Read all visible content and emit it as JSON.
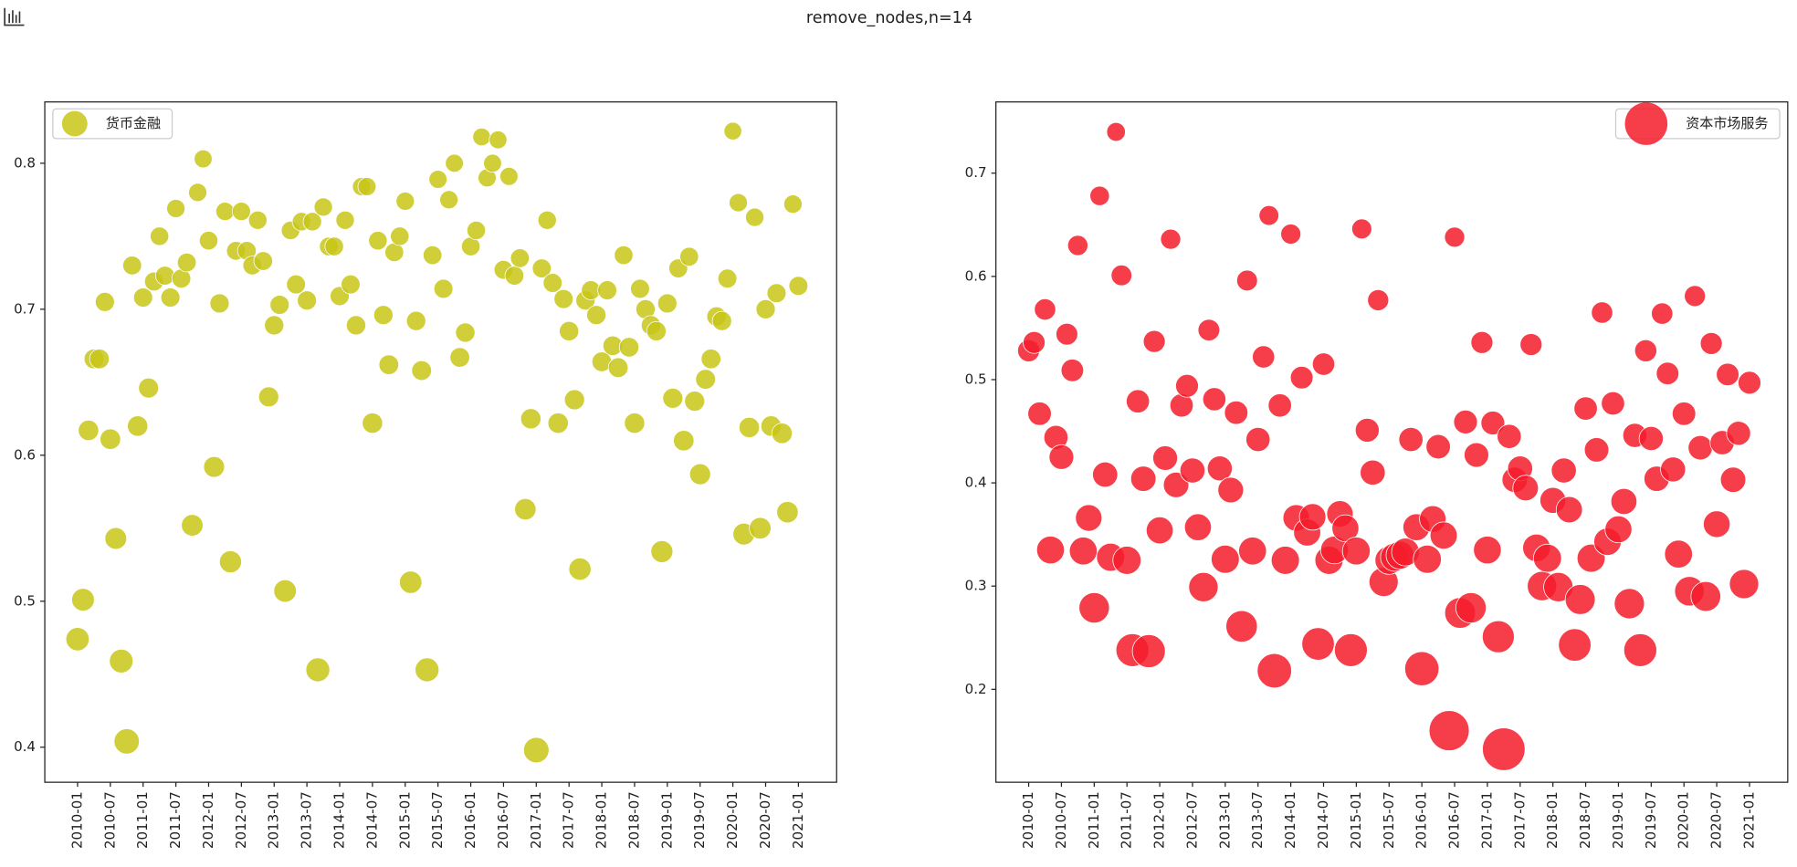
{
  "title": "remove_nodes,n=14",
  "chart_data": [
    {
      "type": "scatter",
      "x": [
        "2010-01",
        "2010-02",
        "2010-03",
        "2010-04",
        "2010-05",
        "2010-06",
        "2010-07",
        "2010-08",
        "2010-09",
        "2010-10",
        "2010-11",
        "2010-12",
        "2011-01",
        "2011-02",
        "2011-03",
        "2011-04",
        "2011-05",
        "2011-06",
        "2011-07",
        "2011-08",
        "2011-09",
        "2011-10",
        "2011-11",
        "2011-12",
        "2012-01",
        "2012-02",
        "2012-03",
        "2012-04",
        "2012-05",
        "2012-06",
        "2012-07",
        "2012-08",
        "2012-09",
        "2012-10",
        "2012-11",
        "2012-12",
        "2013-01",
        "2013-02",
        "2013-03",
        "2013-04",
        "2013-05",
        "2013-06",
        "2013-07",
        "2013-08",
        "2013-09",
        "2013-10",
        "2013-11",
        "2013-12",
        "2014-01",
        "2014-02",
        "2014-03",
        "2014-04",
        "2014-05",
        "2014-06",
        "2014-07",
        "2014-08",
        "2014-09",
        "2014-10",
        "2014-11",
        "2014-12",
        "2015-01",
        "2015-02",
        "2015-03",
        "2015-04",
        "2015-05",
        "2015-06",
        "2015-07",
        "2015-08",
        "2015-09",
        "2015-10",
        "2015-11",
        "2015-12",
        "2016-01",
        "2016-02",
        "2016-03",
        "2016-04",
        "2016-05",
        "2016-06",
        "2016-07",
        "2016-08",
        "2016-09",
        "2016-10",
        "2016-11",
        "2016-12",
        "2017-01",
        "2017-02",
        "2017-03",
        "2017-04",
        "2017-05",
        "2017-06",
        "2017-07",
        "2017-08",
        "2017-09",
        "2017-10",
        "2017-11",
        "2017-12",
        "2018-01",
        "2018-02",
        "2018-03",
        "2018-04",
        "2018-05",
        "2018-06",
        "2018-07",
        "2018-08",
        "2018-09",
        "2018-10",
        "2018-11",
        "2018-12",
        "2019-01",
        "2019-02",
        "2019-03",
        "2019-04",
        "2019-05",
        "2019-06",
        "2019-07",
        "2019-08",
        "2019-09",
        "2019-10",
        "2019-11",
        "2019-12",
        "2020-01",
        "2020-02",
        "2020-03",
        "2020-04",
        "2020-05",
        "2020-06",
        "2020-07",
        "2020-08",
        "2020-09",
        "2020-10",
        "2020-11",
        "2020-12",
        "2021-01"
      ],
      "xlim": [
        "2009-07",
        "2021-08"
      ],
      "xticks": [
        "2010-01",
        "2010-07",
        "2011-01",
        "2011-07",
        "2012-01",
        "2012-07",
        "2013-01",
        "2013-07",
        "2014-01",
        "2014-07",
        "2015-01",
        "2015-07",
        "2016-01",
        "2016-07",
        "2017-01",
        "2017-07",
        "2018-01",
        "2018-07",
        "2019-01",
        "2019-07",
        "2020-01",
        "2020-07",
        "2021-01"
      ],
      "ylim": [
        0.376,
        0.842
      ],
      "yticks": [
        0.4,
        0.5,
        0.6,
        0.7,
        0.8
      ],
      "legend": "upper left",
      "series": [
        {
          "name": "货币金融",
          "color": "#c8c516",
          "values": [
            0.474,
            0.501,
            0.617,
            0.666,
            0.666,
            0.705,
            0.611,
            0.543,
            0.459,
            0.404,
            0.73,
            0.62,
            0.708,
            0.646,
            0.719,
            0.75,
            0.723,
            0.708,
            0.769,
            0.721,
            0.732,
            0.552,
            0.78,
            0.803,
            0.747,
            0.592,
            0.704,
            0.767,
            0.527,
            0.74,
            0.767,
            0.74,
            0.73,
            0.761,
            0.733,
            0.64,
            0.689,
            0.703,
            0.507,
            0.754,
            0.717,
            0.76,
            0.706,
            0.76,
            0.453,
            0.77,
            0.743,
            0.743,
            0.709,
            0.761,
            0.717,
            0.689,
            0.784,
            0.784,
            0.622,
            0.747,
            0.696,
            0.662,
            0.739,
            0.75,
            0.774,
            0.513,
            0.692,
            0.658,
            0.453,
            0.737,
            0.789,
            0.714,
            0.775,
            0.8,
            0.667,
            0.684,
            0.743,
            0.754,
            0.818,
            0.79,
            0.8,
            0.816,
            0.727,
            0.791,
            0.723,
            0.735,
            0.563,
            0.625,
            0.398,
            0.728,
            0.761,
            0.718,
            0.622,
            0.707,
            0.685,
            0.638,
            0.522,
            0.706,
            0.713,
            0.696,
            0.664,
            0.713,
            0.675,
            0.66,
            0.737,
            0.674,
            0.622,
            0.714,
            0.7,
            0.689,
            0.685,
            0.534,
            0.704,
            0.639,
            0.728,
            0.61,
            0.736,
            0.637,
            0.587,
            0.652,
            0.666,
            0.695,
            0.692,
            0.721,
            0.822,
            0.773,
            0.546,
            0.619,
            0.763,
            0.55,
            0.7,
            0.62,
            0.711,
            0.615,
            0.561,
            0.772,
            0.716
          ]
        }
      ]
    },
    {
      "type": "scatter",
      "x": [
        "2010-01",
        "2010-02",
        "2010-03",
        "2010-04",
        "2010-05",
        "2010-06",
        "2010-07",
        "2010-08",
        "2010-09",
        "2010-10",
        "2010-11",
        "2010-12",
        "2011-01",
        "2011-02",
        "2011-03",
        "2011-04",
        "2011-05",
        "2011-06",
        "2011-07",
        "2011-08",
        "2011-09",
        "2011-10",
        "2011-11",
        "2011-12",
        "2012-01",
        "2012-02",
        "2012-03",
        "2012-04",
        "2012-05",
        "2012-06",
        "2012-07",
        "2012-08",
        "2012-09",
        "2012-10",
        "2012-11",
        "2012-12",
        "2013-01",
        "2013-02",
        "2013-03",
        "2013-04",
        "2013-05",
        "2013-06",
        "2013-07",
        "2013-08",
        "2013-09",
        "2013-10",
        "2013-11",
        "2013-12",
        "2014-01",
        "2014-02",
        "2014-03",
        "2014-04",
        "2014-05",
        "2014-06",
        "2014-07",
        "2014-08",
        "2014-09",
        "2014-10",
        "2014-11",
        "2014-12",
        "2015-01",
        "2015-02",
        "2015-03",
        "2015-04",
        "2015-05",
        "2015-06",
        "2015-07",
        "2015-08",
        "2015-09",
        "2015-10",
        "2015-11",
        "2015-12",
        "2016-01",
        "2016-02",
        "2016-03",
        "2016-04",
        "2016-05",
        "2016-06",
        "2016-07",
        "2016-08",
        "2016-09",
        "2016-10",
        "2016-11",
        "2016-12",
        "2017-01",
        "2017-02",
        "2017-03",
        "2017-04",
        "2017-05",
        "2017-06",
        "2017-07",
        "2017-08",
        "2017-09",
        "2017-10",
        "2017-11",
        "2017-12",
        "2018-01",
        "2018-02",
        "2018-03",
        "2018-04",
        "2018-05",
        "2018-06",
        "2018-07",
        "2018-08",
        "2018-09",
        "2018-10",
        "2018-11",
        "2018-12",
        "2019-01",
        "2019-02",
        "2019-03",
        "2019-04",
        "2019-05",
        "2019-06",
        "2019-07",
        "2019-08",
        "2019-09",
        "2019-10",
        "2019-11",
        "2019-12",
        "2020-01",
        "2020-02",
        "2020-03",
        "2020-04",
        "2020-05",
        "2020-06",
        "2020-07",
        "2020-08",
        "2020-09",
        "2020-10",
        "2020-11",
        "2020-12",
        "2021-01"
      ],
      "xlim": [
        "2009-07",
        "2021-08"
      ],
      "xticks": [
        "2010-01",
        "2010-07",
        "2011-01",
        "2011-07",
        "2012-01",
        "2012-07",
        "2013-01",
        "2013-07",
        "2014-01",
        "2014-07",
        "2015-01",
        "2015-07",
        "2016-01",
        "2016-07",
        "2017-01",
        "2017-07",
        "2018-01",
        "2018-07",
        "2019-01",
        "2019-07",
        "2020-01",
        "2020-07",
        "2021-01"
      ],
      "ylim": [
        0.11,
        0.769
      ],
      "yticks": [
        0.2,
        0.3,
        0.4,
        0.5,
        0.6,
        0.7
      ],
      "legend": "upper right",
      "series": [
        {
          "name": "资本市场服务",
          "color": "#f41c2c",
          "values": [
            0.528,
            0.536,
            0.467,
            0.568,
            0.335,
            0.444,
            0.425,
            0.544,
            0.509,
            0.63,
            0.334,
            0.366,
            0.279,
            0.678,
            0.408,
            0.328,
            0.74,
            0.601,
            0.325,
            0.238,
            0.479,
            0.404,
            0.237,
            0.537,
            0.354,
            0.424,
            0.636,
            0.398,
            0.475,
            0.494,
            0.412,
            0.357,
            0.299,
            0.548,
            0.481,
            0.414,
            0.326,
            0.393,
            0.468,
            0.261,
            0.596,
            0.334,
            0.442,
            0.522,
            0.659,
            0.218,
            0.475,
            0.325,
            0.641,
            0.366,
            0.502,
            0.352,
            0.367,
            0.244,
            0.515,
            0.325,
            0.335,
            0.37,
            0.356,
            0.238,
            0.334,
            0.646,
            0.451,
            0.41,
            0.577,
            0.304,
            0.325,
            0.328,
            0.33,
            0.333,
            0.442,
            0.357,
            0.22,
            0.326,
            0.365,
            0.435,
            0.349,
            0.16,
            0.638,
            0.274,
            0.459,
            0.279,
            0.427,
            0.536,
            0.335,
            0.458,
            0.251,
            0.142,
            0.445,
            0.403,
            0.414,
            0.395,
            0.534,
            0.337,
            0.3,
            0.327,
            0.383,
            0.299,
            0.412,
            0.374,
            0.243,
            0.287,
            0.472,
            0.327,
            0.432,
            0.565,
            0.343,
            0.477,
            0.355,
            0.382,
            0.283,
            0.446,
            0.238,
            0.528,
            0.443,
            0.404,
            0.564,
            0.506,
            0.413,
            0.331,
            0.467,
            0.295,
            0.581,
            0.434,
            0.29,
            0.535,
            0.36,
            0.439,
            0.505,
            0.403,
            0.448,
            0.302,
            0.497
          ]
        }
      ]
    }
  ]
}
